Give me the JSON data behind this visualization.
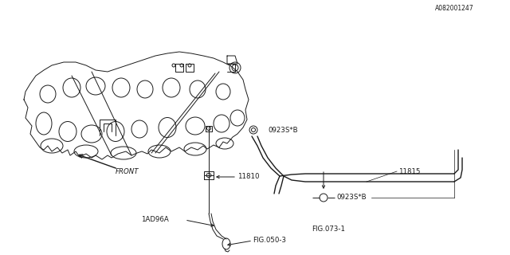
{
  "bg_color": "#ffffff",
  "line_color": "#1a1a1a",
  "fig_width": 6.4,
  "fig_height": 3.2,
  "dpi": 100,
  "diagram_id": "A082001247",
  "labels": {
    "FIG050_3": "FIG.050-3",
    "label_1AD96A": "1AD96A",
    "label_11810": "11810",
    "label_FRONT": "FRONT",
    "FIG073_1": "FIG.073-1",
    "label_0923S_B_top": "0923S*B",
    "label_11815": "11815",
    "label_0923S_B_bot": "0923S*B"
  }
}
